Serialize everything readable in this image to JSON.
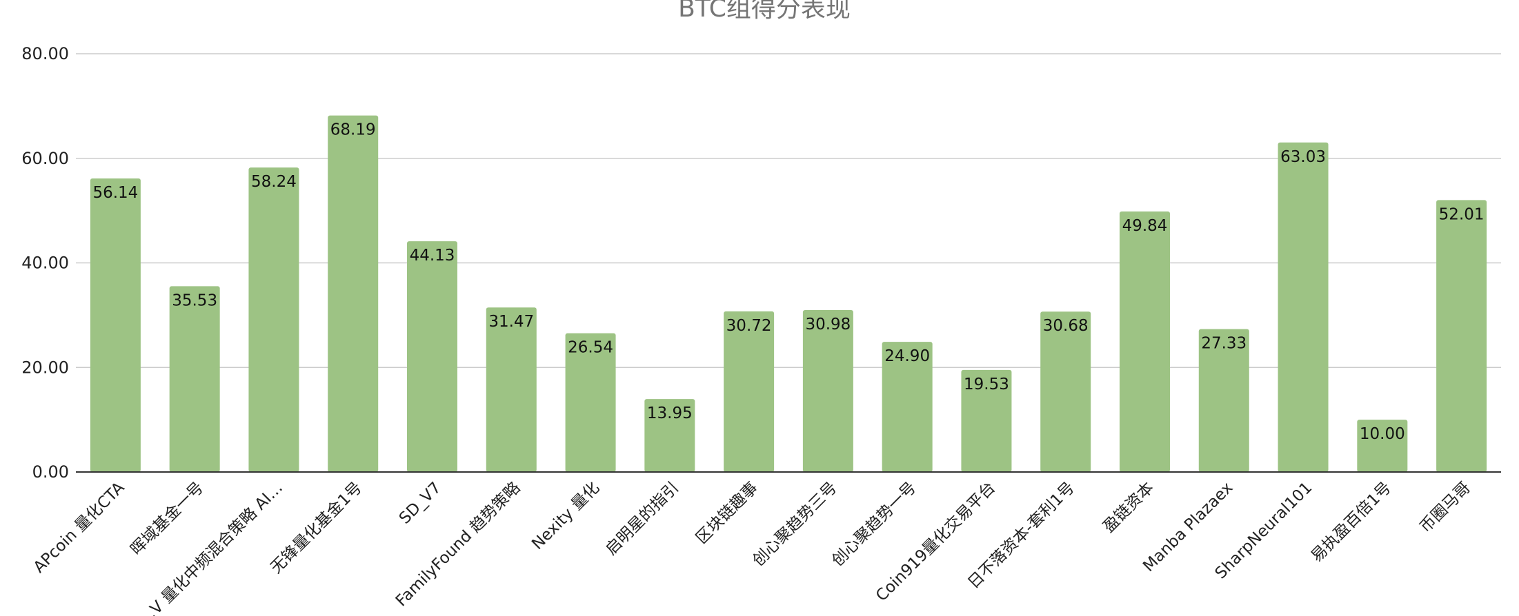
{
  "chart_data": {
    "type": "bar",
    "title": "BTC组得分表现",
    "xlabel": "",
    "ylabel": "",
    "ylim": [
      0,
      80
    ],
    "yticks": [
      "0.00",
      "20.00",
      "40.00",
      "60.00",
      "80.00"
    ],
    "grid": true,
    "legend": "none",
    "bar_color": "#9dc384",
    "categories": [
      "APcoin 量化CTA",
      "晖域基金一号",
      "…V 量化中频混合策略 AI…",
      "无锋量化基金1号",
      "SD_V7",
      "FamilyFound 趋势策略",
      "Nexity 量化",
      "启明星的指引",
      "区块链趣事",
      "创心聚趋势三号",
      "创心聚趋势一号",
      "Coin919量化交易平台",
      "日不落资本-套利1号",
      "盈链资本",
      "Manba Plazaex",
      "SharpNeural101",
      "易执盈百倍1号",
      "币圈马哥"
    ],
    "values": [
      56.14,
      35.53,
      58.24,
      68.19,
      44.13,
      31.47,
      26.54,
      13.95,
      30.72,
      30.98,
      24.9,
      19.53,
      30.68,
      49.84,
      27.33,
      63.03,
      10.0,
      52.01
    ],
    "value_labels": [
      "56.14",
      "35.53",
      "58.24",
      "68.19",
      "44.13",
      "31.47",
      "26.54",
      "13.95",
      "30.72",
      "30.98",
      "24.90",
      "19.53",
      "30.68",
      "49.84",
      "27.33",
      "63.03",
      "10.00",
      "52.01"
    ]
  }
}
